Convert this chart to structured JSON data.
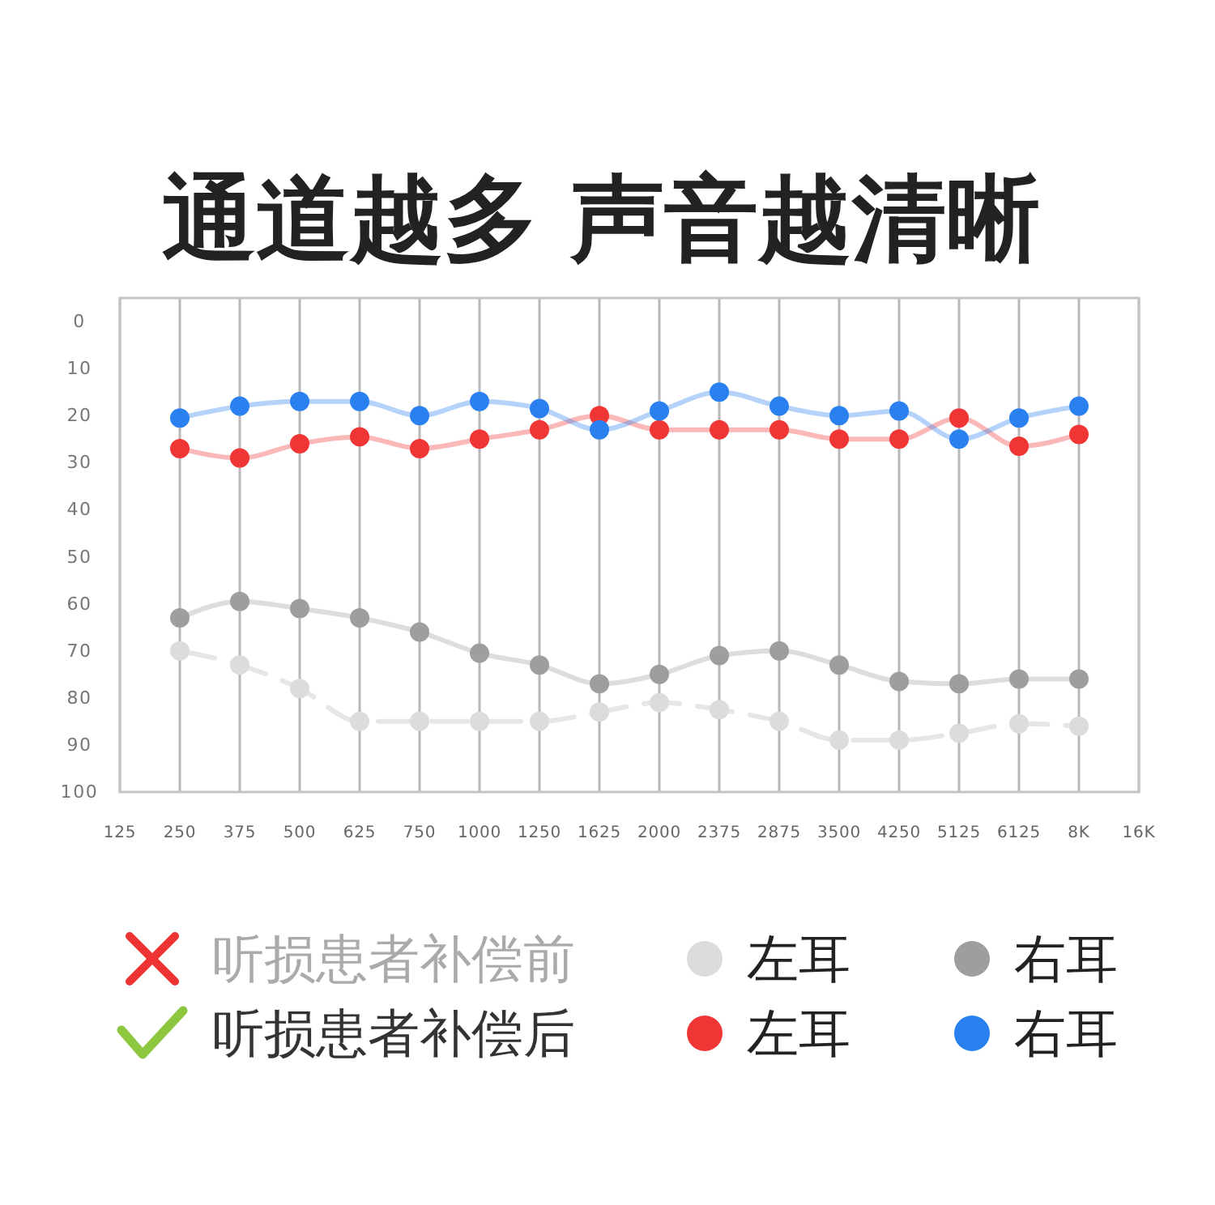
{
  "chart_data": {
    "type": "line",
    "title": "通道越多 声音越清晰",
    "categories": [
      "125",
      "250",
      "375",
      "500",
      "625",
      "750",
      "1000",
      "1250",
      "1625",
      "2000",
      "2375",
      "2875",
      "3500",
      "4250",
      "5125",
      "6125",
      "8K",
      "16K"
    ],
    "ylim": [
      100,
      -5
    ],
    "yticks": [
      0,
      10,
      20,
      30,
      40,
      50,
      60,
      70,
      80,
      90,
      100
    ],
    "grid": "x",
    "marker": "circle",
    "line_style": "solid",
    "legend": "bottom",
    "annotations": [
      "听损患者补偿前",
      "听损患者补偿后"
    ],
    "series": [
      {
        "name": "左耳",
        "color": "#dcdcdc",
        "line_style": "dashed",
        "values": [
          null,
          70,
          73,
          78,
          85,
          85,
          85,
          85,
          83,
          81,
          82.5,
          85,
          89,
          89,
          87.5,
          85.5,
          86,
          null
        ]
      },
      {
        "name": "右耳",
        "color": "#9e9e9e",
        "values": [
          null,
          63,
          59.5,
          61,
          63,
          66,
          70.5,
          73,
          77,
          75,
          71,
          70,
          73,
          76.5,
          77,
          76,
          76,
          null
        ]
      },
      {
        "name": "左耳",
        "color": "#f03535",
        "values": [
          null,
          27,
          29,
          26,
          24.5,
          27,
          25,
          23,
          20,
          23,
          23,
          23,
          25,
          25,
          20.5,
          26.5,
          24,
          null
        ]
      },
      {
        "name": "右耳",
        "color": "#2b80f0",
        "values": [
          null,
          20.5,
          18,
          17,
          17,
          20,
          17,
          18.5,
          23,
          19,
          15,
          18,
          20,
          19,
          25,
          20.5,
          18,
          null
        ]
      }
    ]
  }
}
